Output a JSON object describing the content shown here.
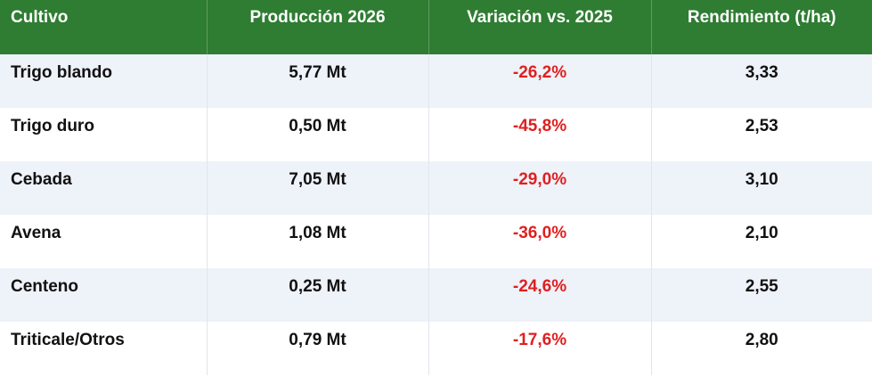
{
  "colors": {
    "header_bg": "#2e7d32",
    "header_text": "#ffffff",
    "negative": "#e01f1f",
    "stripe": "#eef2f9"
  },
  "table": {
    "headers": [
      "Cultivo",
      "Producción 2026",
      "Variación vs. 2025",
      "Rendimiento (t/ha)"
    ],
    "rows": [
      [
        "Trigo blando",
        "5,77 Mt",
        "-26,2%",
        "3,33"
      ],
      [
        "Trigo duro",
        "0,50 Mt",
        "-45,8%",
        "2,53"
      ],
      [
        "Cebada",
        "7,05 Mt",
        "-29,0%",
        "3,10"
      ],
      [
        "Avena",
        "1,08 Mt",
        "-36,0%",
        "2,10"
      ],
      [
        "Centeno",
        "0,25 Mt",
        "-24,6%",
        "2,55"
      ],
      [
        "Triticale/Otros",
        "0,79 Mt",
        "-17,6%",
        "2,80"
      ]
    ]
  }
}
